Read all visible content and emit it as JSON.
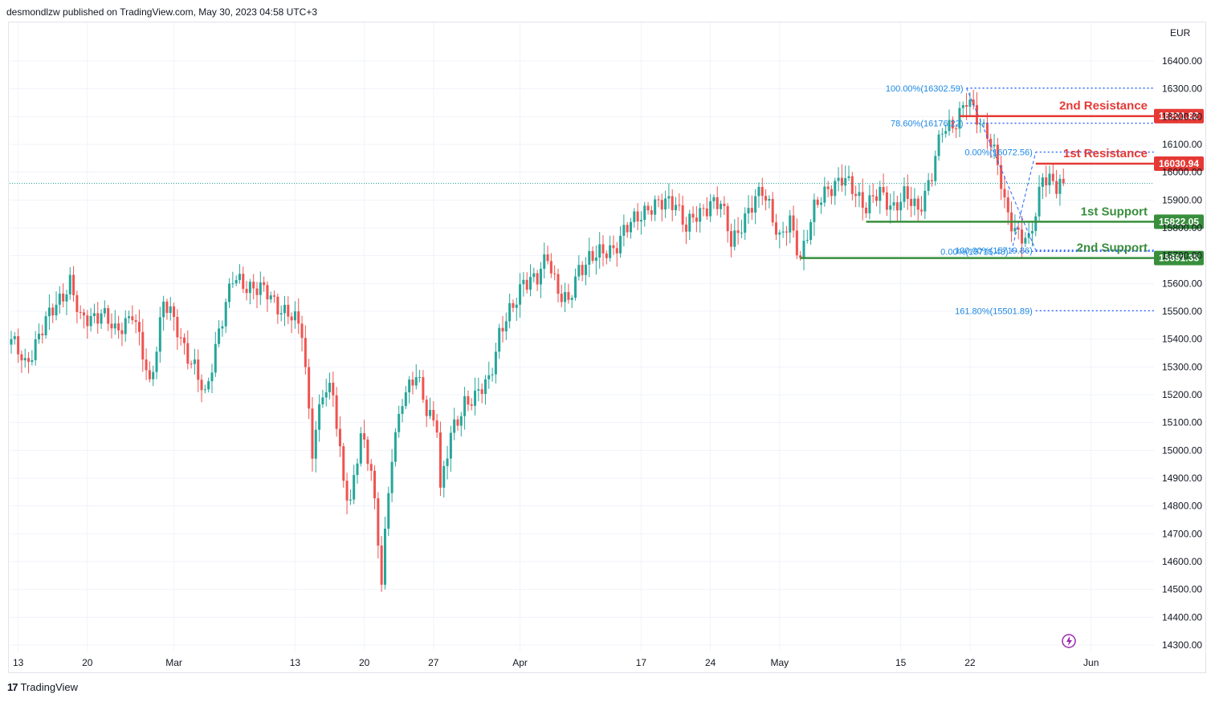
{
  "header": {
    "text": "desmondlzw published on TradingView.com, May 30, 2023 04:58 UTC+3"
  },
  "footer": {
    "logo_mark": "17",
    "logo_text": "TradingView"
  },
  "colors": {
    "up": "#26a69a",
    "down": "#ef5350",
    "resistance": "#e53935",
    "support": "#388e3c",
    "fib": "#2962ff",
    "fib_text": "#1e88e5",
    "grid": "#f0f3fa",
    "axis_text": "#131722"
  },
  "chart_data": {
    "type": "candlestick",
    "currency_label": "EUR",
    "ylim": [
      14240,
      16490
    ],
    "y_ticks": [
      "16400.00",
      "16300.00",
      "16200.00",
      "16100.00",
      "16000.00",
      "15900.00",
      "15800.00",
      "15700.00",
      "15600.00",
      "15500.00",
      "15400.00",
      "15300.00",
      "15200.00",
      "15100.00",
      "15000.00",
      "14900.00",
      "14800.00",
      "14700.00",
      "14600.00",
      "14500.00",
      "14400.00",
      "14300.00"
    ],
    "x_ticks": [
      {
        "label": "13",
        "index": 2
      },
      {
        "label": "20",
        "index": 22
      },
      {
        "label": "Mar",
        "index": 47
      },
      {
        "label": "13",
        "index": 82
      },
      {
        "label": "20",
        "index": 102
      },
      {
        "label": "27",
        "index": 122
      },
      {
        "label": "Apr",
        "index": 147
      },
      {
        "label": "17",
        "index": 182
      },
      {
        "label": "24",
        "index": 202
      },
      {
        "label": "May",
        "index": 222
      },
      {
        "label": "15",
        "index": 257
      },
      {
        "label": "22",
        "index": 277
      },
      {
        "label": "Jun",
        "index": 312
      }
    ],
    "current_price": 15960,
    "levels": [
      {
        "name": "2nd Resistance",
        "value": 16201.82,
        "value_label": "16201.82",
        "kind": "resistance",
        "start_index": 274
      },
      {
        "name": "1st Resistance",
        "value": 16030.94,
        "value_label": "16030.94",
        "kind": "resistance",
        "start_index": 296
      },
      {
        "name": "1st Support",
        "value": 15822.05,
        "value_label": "15822.05",
        "kind": "support",
        "start_index": 247
      },
      {
        "name": "2nd Support",
        "value": 15691.38,
        "value_label": "15691.38",
        "kind": "support",
        "start_index": 228
      }
    ],
    "fib_levels": [
      {
        "label": "100.00%(16302.59)",
        "value": 16302.59,
        "start_index": 276
      },
      {
        "label": "78.60%(16176.22)",
        "value": 16176.22,
        "start_index": 276
      },
      {
        "label": "0.00%(16072.56)",
        "value": 16072.56,
        "start_index": 296
      },
      {
        "label": "0.00%(15715.48)",
        "value": 15715.48,
        "start_index": 289
      },
      {
        "label": "100.00%(15719.86)",
        "value": 15719.86,
        "start_index": 296
      },
      {
        "label": "161.80%(15501.89)",
        "value": 15501.89,
        "start_index": 296
      }
    ],
    "anchors": [
      [
        0,
        15400
      ],
      [
        4,
        15300
      ],
      [
        8,
        15420
      ],
      [
        12,
        15500
      ],
      [
        17,
        15610
      ],
      [
        20,
        15460
      ],
      [
        26,
        15500
      ],
      [
        30,
        15420
      ],
      [
        35,
        15500
      ],
      [
        40,
        15230
      ],
      [
        44,
        15540
      ],
      [
        49,
        15400
      ],
      [
        53,
        15300
      ],
      [
        56,
        15180
      ],
      [
        60,
        15440
      ],
      [
        64,
        15610
      ],
      [
        70,
        15590
      ],
      [
        74,
        15560
      ],
      [
        80,
        15490
      ],
      [
        84,
        15430
      ],
      [
        87,
        15010
      ],
      [
        90,
        15200
      ],
      [
        93,
        15210
      ],
      [
        96,
        14900
      ],
      [
        98,
        14800
      ],
      [
        101,
        15050
      ],
      [
        104,
        14950
      ],
      [
        107,
        14530
      ],
      [
        110,
        14980
      ],
      [
        113,
        15200
      ],
      [
        117,
        15260
      ],
      [
        120,
        15150
      ],
      [
        123,
        15100
      ],
      [
        124,
        14850
      ],
      [
        127,
        15050
      ],
      [
        131,
        15180
      ],
      [
        134,
        15180
      ],
      [
        138,
        15260
      ],
      [
        141,
        15420
      ],
      [
        145,
        15510
      ],
      [
        148,
        15620
      ],
      [
        152,
        15610
      ],
      [
        155,
        15700
      ],
      [
        158,
        15580
      ],
      [
        161,
        15520
      ],
      [
        164,
        15650
      ],
      [
        167,
        15700
      ],
      [
        171,
        15700
      ],
      [
        174,
        15730
      ],
      [
        177,
        15790
      ],
      [
        180,
        15820
      ],
      [
        184,
        15880
      ],
      [
        188,
        15880
      ],
      [
        192,
        15900
      ],
      [
        195,
        15800
      ],
      [
        199,
        15850
      ],
      [
        202,
        15900
      ],
      [
        205,
        15880
      ],
      [
        208,
        15750
      ],
      [
        211,
        15820
      ],
      [
        214,
        15870
      ],
      [
        217,
        15940
      ],
      [
        219,
        15890
      ],
      [
        222,
        15750
      ],
      [
        225,
        15820
      ],
      [
        228,
        15700
      ],
      [
        232,
        15860
      ],
      [
        236,
        15950
      ],
      [
        240,
        15970
      ],
      [
        244,
        15930
      ],
      [
        247,
        15880
      ],
      [
        251,
        15920
      ],
      [
        255,
        15880
      ],
      [
        258,
        15910
      ],
      [
        262,
        15870
      ],
      [
        266,
        15990
      ],
      [
        269,
        16150
      ],
      [
        273,
        16190
      ],
      [
        276,
        16250
      ],
      [
        279,
        16200
      ],
      [
        282,
        16150
      ],
      [
        285,
        16020
      ],
      [
        287,
        15880
      ],
      [
        290,
        15800
      ],
      [
        292,
        15770
      ],
      [
        294,
        15740
      ],
      [
        296,
        15850
      ],
      [
        298,
        16000
      ],
      [
        300,
        15980
      ],
      [
        302,
        15940
      ],
      [
        304,
        15960
      ]
    ]
  }
}
